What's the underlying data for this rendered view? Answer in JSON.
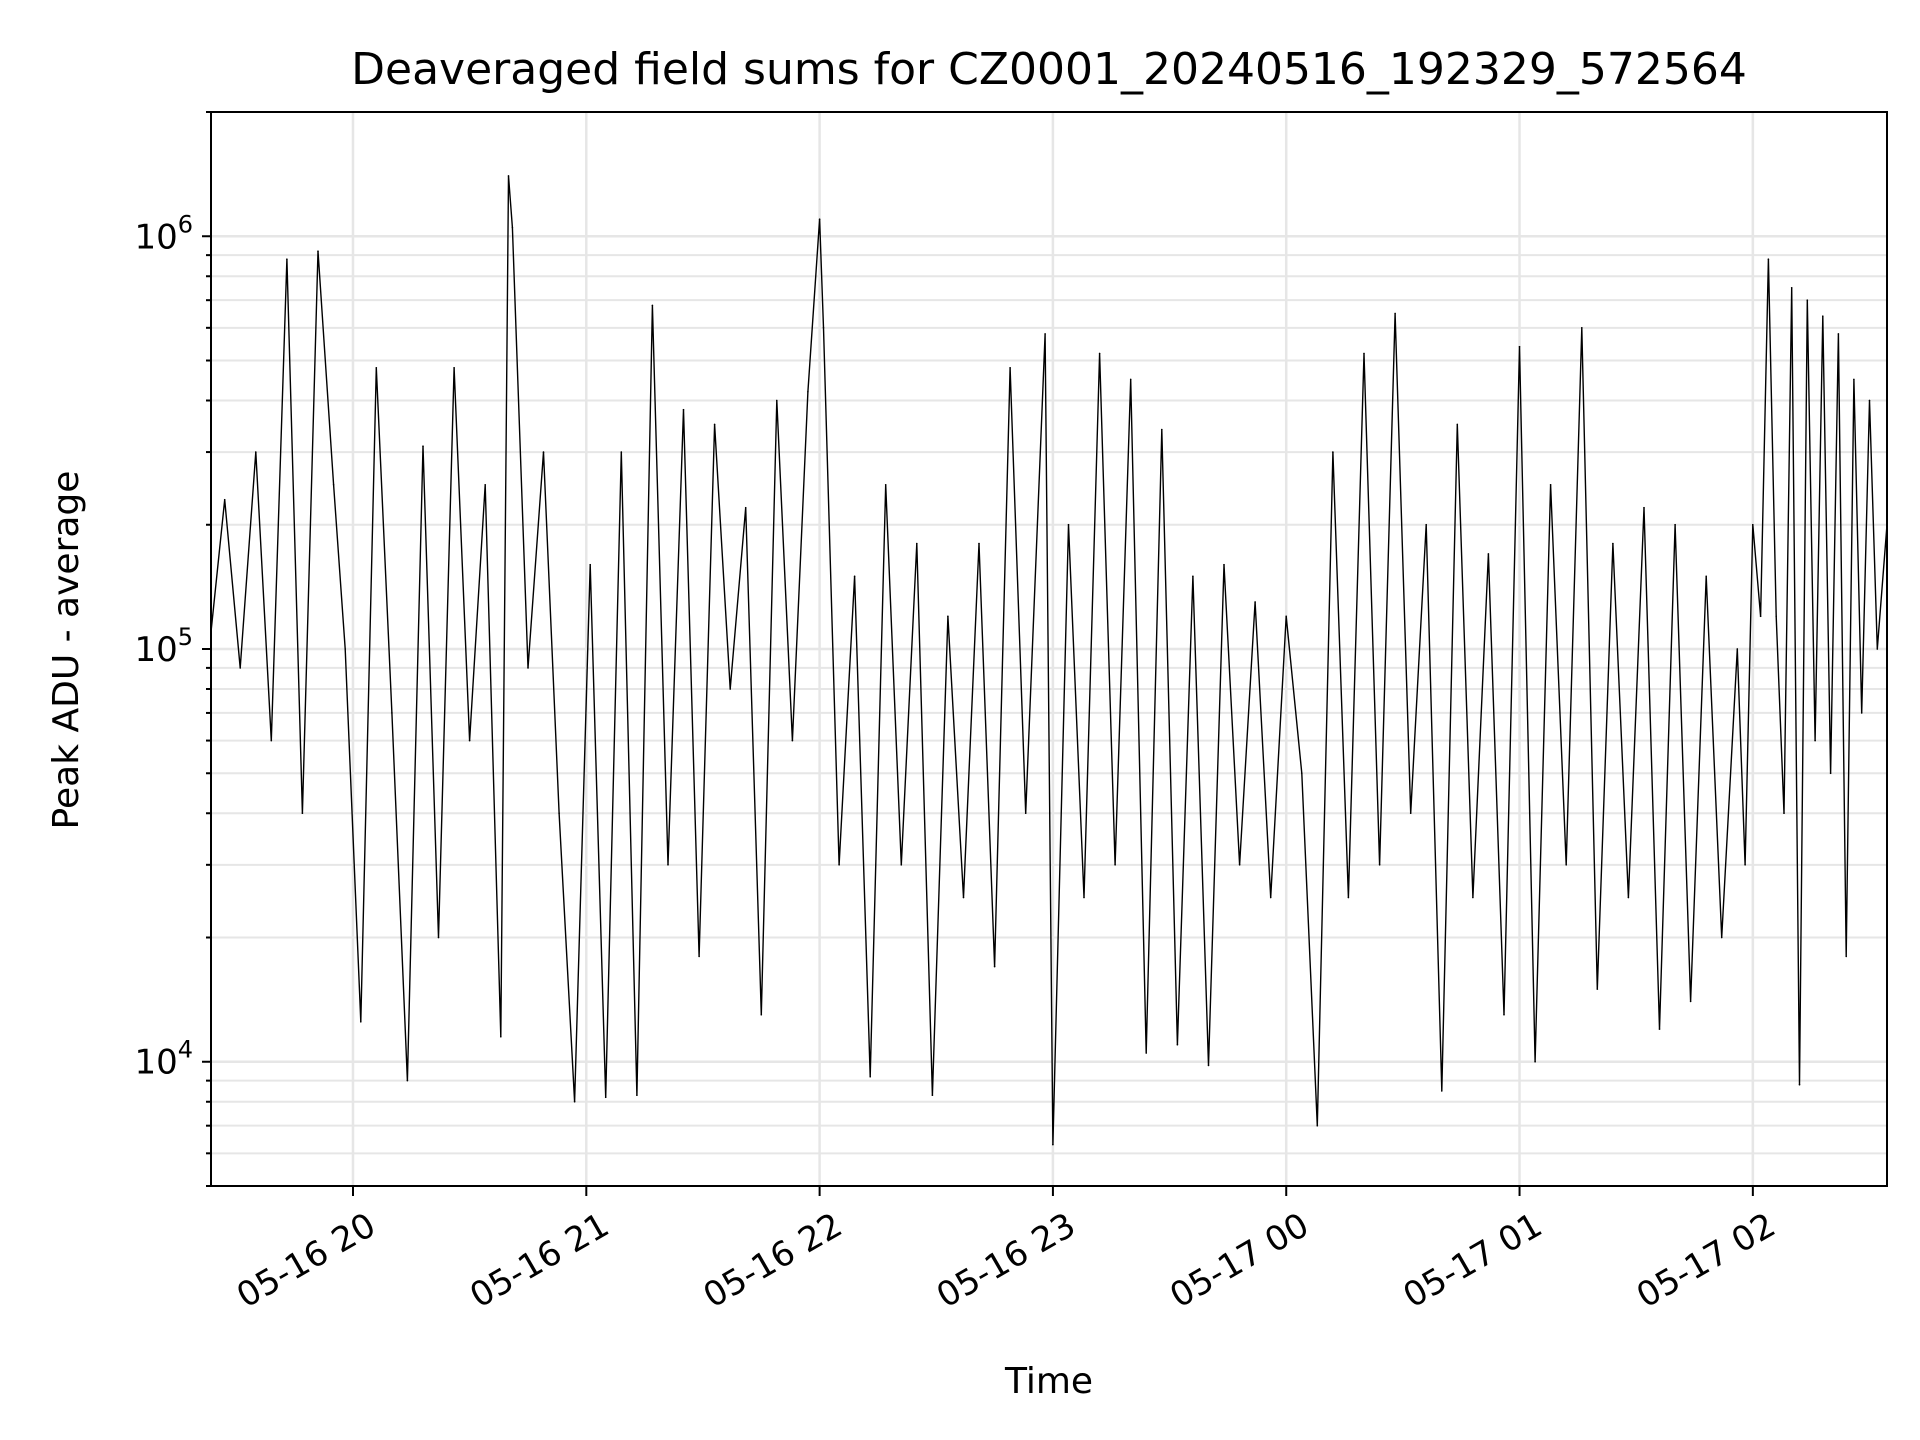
{
  "chart_data": {
    "type": "line",
    "title": "Deaveraged field sums for CZ0001_20240516_192329_572564",
    "xlabel": "Time",
    "ylabel": "Peak ADU - average",
    "yscale": "log",
    "ylim": [
      5000,
      2000000
    ],
    "xlim": [
      "2024-05-16 19:23:29",
      "2024-05-17 02:34:30"
    ],
    "grid": true,
    "line_color": "#000000",
    "x_ticks": [
      {
        "t": "2024-05-16 20:00",
        "label": "05-16 20"
      },
      {
        "t": "2024-05-16 21:00",
        "label": "05-16 21"
      },
      {
        "t": "2024-05-16 22:00",
        "label": "05-16 22"
      },
      {
        "t": "2024-05-16 23:00",
        "label": "05-16 23"
      },
      {
        "t": "2024-05-17 00:00",
        "label": "05-17 00"
      },
      {
        "t": "2024-05-17 01:00",
        "label": "05-17 01"
      },
      {
        "t": "2024-05-17 02:00",
        "label": "05-17 02"
      }
    ],
    "y_ticks": [
      {
        "value": 10000,
        "base": "10",
        "exp": "4"
      },
      {
        "value": 100000,
        "base": "10",
        "exp": "5"
      },
      {
        "value": 1000000,
        "base": "10",
        "exp": "6"
      }
    ],
    "series": [
      {
        "points": [
          [
            "2024-05-16 19:23:29",
            110000
          ],
          [
            "2024-05-16 19:27",
            230000
          ],
          [
            "2024-05-16 19:31",
            90000
          ],
          [
            "2024-05-16 19:35",
            300000
          ],
          [
            "2024-05-16 19:39",
            60000
          ],
          [
            "2024-05-16 19:43",
            880000
          ],
          [
            "2024-05-16 19:47",
            40000
          ],
          [
            "2024-05-16 19:51",
            920000
          ],
          [
            "2024-05-16 19:55",
            250000
          ],
          [
            "2024-05-16 19:58",
            100000
          ],
          [
            "2024-05-16 20:02",
            12500
          ],
          [
            "2024-05-16 20:06",
            480000
          ],
          [
            "2024-05-16 20:10",
            70000
          ],
          [
            "2024-05-16 20:14",
            9000
          ],
          [
            "2024-05-16 20:18",
            310000
          ],
          [
            "2024-05-16 20:22",
            20000
          ],
          [
            "2024-05-16 20:26",
            480000
          ],
          [
            "2024-05-16 20:30",
            60000
          ],
          [
            "2024-05-16 20:34",
            250000
          ],
          [
            "2024-05-16 20:38",
            11500
          ],
          [
            "2024-05-16 20:40",
            1400000
          ],
          [
            "2024-05-16 20:41",
            1050000
          ],
          [
            "2024-05-16 20:45",
            90000
          ],
          [
            "2024-05-16 20:49",
            300000
          ],
          [
            "2024-05-16 20:53",
            40000
          ],
          [
            "2024-05-16 20:57",
            8000
          ],
          [
            "2024-05-16 21:01",
            160000
          ],
          [
            "2024-05-16 21:05",
            8200
          ],
          [
            "2024-05-16 21:09",
            300000
          ],
          [
            "2024-05-16 21:13",
            8300
          ],
          [
            "2024-05-16 21:17",
            680000
          ],
          [
            "2024-05-16 21:21",
            30000
          ],
          [
            "2024-05-16 21:25",
            380000
          ],
          [
            "2024-05-16 21:29",
            18000
          ],
          [
            "2024-05-16 21:33",
            350000
          ],
          [
            "2024-05-16 21:37",
            80000
          ],
          [
            "2024-05-16 21:41",
            220000
          ],
          [
            "2024-05-16 21:45",
            13000
          ],
          [
            "2024-05-16 21:49",
            400000
          ],
          [
            "2024-05-16 21:53",
            60000
          ],
          [
            "2024-05-16 21:57",
            420000
          ],
          [
            "2024-05-16 22:00",
            1100000
          ],
          [
            "2024-05-16 22:01",
            600000
          ],
          [
            "2024-05-16 22:05",
            30000
          ],
          [
            "2024-05-16 22:09",
            150000
          ],
          [
            "2024-05-16 22:13",
            9200
          ],
          [
            "2024-05-16 22:17",
            250000
          ],
          [
            "2024-05-16 22:21",
            30000
          ],
          [
            "2024-05-16 22:25",
            180000
          ],
          [
            "2024-05-16 22:29",
            8300
          ],
          [
            "2024-05-16 22:33",
            120000
          ],
          [
            "2024-05-16 22:37",
            25000
          ],
          [
            "2024-05-16 22:41",
            180000
          ],
          [
            "2024-05-16 22:45",
            17000
          ],
          [
            "2024-05-16 22:49",
            480000
          ],
          [
            "2024-05-16 22:53",
            40000
          ],
          [
            "2024-05-16 22:58",
            580000
          ],
          [
            "2024-05-16 23:00",
            6300
          ],
          [
            "2024-05-16 23:04",
            200000
          ],
          [
            "2024-05-16 23:08",
            25000
          ],
          [
            "2024-05-16 23:12",
            520000
          ],
          [
            "2024-05-16 23:16",
            30000
          ],
          [
            "2024-05-16 23:20",
            450000
          ],
          [
            "2024-05-16 23:24",
            10500
          ],
          [
            "2024-05-16 23:28",
            340000
          ],
          [
            "2024-05-16 23:32",
            11000
          ],
          [
            "2024-05-16 23:36",
            150000
          ],
          [
            "2024-05-16 23:40",
            9800
          ],
          [
            "2024-05-16 23:44",
            160000
          ],
          [
            "2024-05-16 23:48",
            30000
          ],
          [
            "2024-05-16 23:52",
            130000
          ],
          [
            "2024-05-16 23:56",
            25000
          ],
          [
            "2024-05-17 00:00",
            120000
          ],
          [
            "2024-05-17 00:04",
            50000
          ],
          [
            "2024-05-17 00:08",
            7000
          ],
          [
            "2024-05-17 00:12",
            300000
          ],
          [
            "2024-05-17 00:16",
            25000
          ],
          [
            "2024-05-17 00:20",
            520000
          ],
          [
            "2024-05-17 00:24",
            30000
          ],
          [
            "2024-05-17 00:28",
            650000
          ],
          [
            "2024-05-17 00:32",
            40000
          ],
          [
            "2024-05-17 00:36",
            200000
          ],
          [
            "2024-05-17 00:40",
            8500
          ],
          [
            "2024-05-17 00:44",
            350000
          ],
          [
            "2024-05-17 00:48",
            25000
          ],
          [
            "2024-05-17 00:52",
            170000
          ],
          [
            "2024-05-17 00:56",
            13000
          ],
          [
            "2024-05-17 01:00",
            540000
          ],
          [
            "2024-05-17 01:04",
            10000
          ],
          [
            "2024-05-17 01:08",
            250000
          ],
          [
            "2024-05-17 01:12",
            30000
          ],
          [
            "2024-05-17 01:16",
            600000
          ],
          [
            "2024-05-17 01:20",
            15000
          ],
          [
            "2024-05-17 01:24",
            180000
          ],
          [
            "2024-05-17 01:28",
            25000
          ],
          [
            "2024-05-17 01:32",
            220000
          ],
          [
            "2024-05-17 01:36",
            12000
          ],
          [
            "2024-05-17 01:40",
            200000
          ],
          [
            "2024-05-17 01:44",
            14000
          ],
          [
            "2024-05-17 01:48",
            150000
          ],
          [
            "2024-05-17 01:52",
            20000
          ],
          [
            "2024-05-17 01:56",
            100000
          ],
          [
            "2024-05-17 01:58",
            30000
          ],
          [
            "2024-05-17 02:00",
            200000
          ],
          [
            "2024-05-17 02:02",
            120000
          ],
          [
            "2024-05-17 02:04",
            880000
          ],
          [
            "2024-05-17 02:06",
            120000
          ],
          [
            "2024-05-17 02:08",
            40000
          ],
          [
            "2024-05-17 02:10",
            750000
          ],
          [
            "2024-05-17 02:12",
            8800
          ],
          [
            "2024-05-17 02:14",
            700000
          ],
          [
            "2024-05-17 02:16",
            60000
          ],
          [
            "2024-05-17 02:18",
            640000
          ],
          [
            "2024-05-17 02:20",
            50000
          ],
          [
            "2024-05-17 02:22",
            580000
          ],
          [
            "2024-05-17 02:24",
            18000
          ],
          [
            "2024-05-17 02:26",
            450000
          ],
          [
            "2024-05-17 02:28",
            70000
          ],
          [
            "2024-05-17 02:30",
            400000
          ],
          [
            "2024-05-17 02:32",
            100000
          ],
          [
            "2024-05-17 02:34:30",
            200000
          ]
        ]
      }
    ]
  }
}
